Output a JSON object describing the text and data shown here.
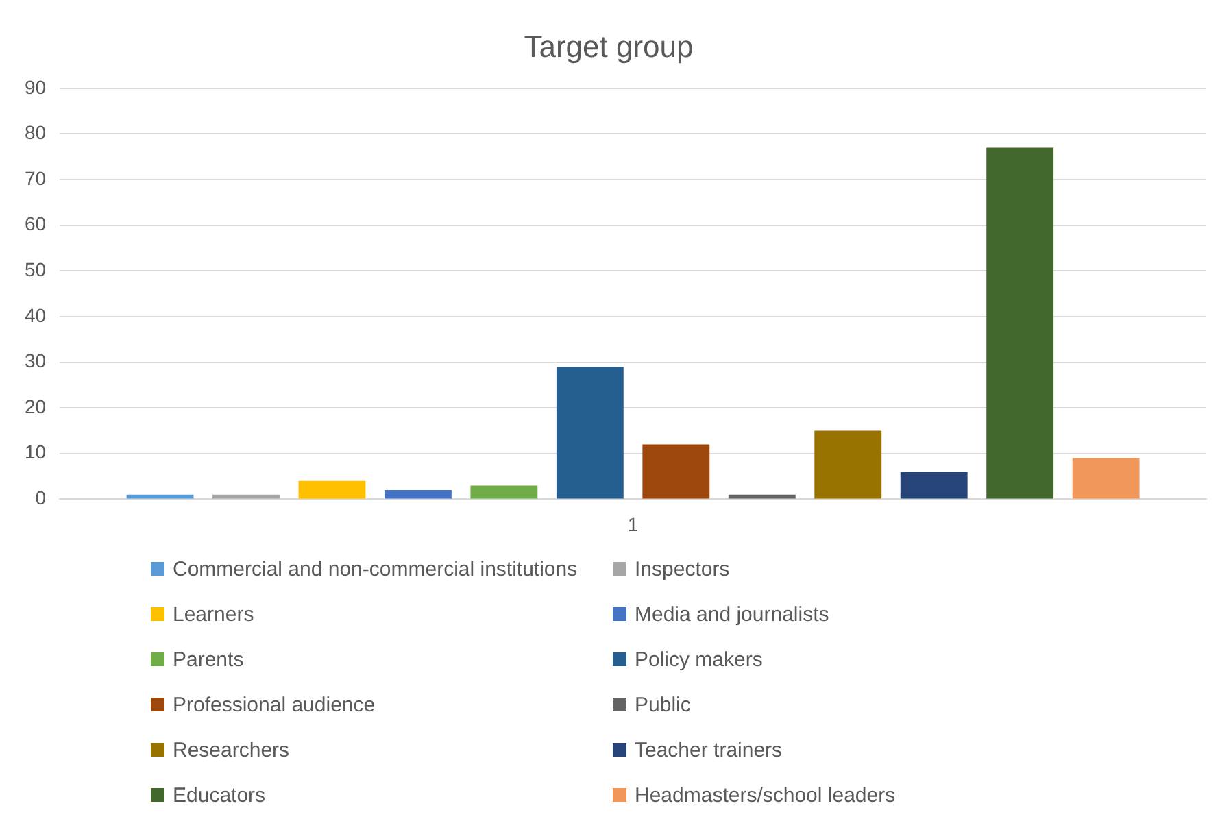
{
  "chart_data": {
    "type": "bar",
    "title": "Target group",
    "categories": [
      "1"
    ],
    "series": [
      {
        "name": "Commercial and non-commercial institutions",
        "color": "#5b9bd5",
        "values": [
          1
        ]
      },
      {
        "name": "Inspectors",
        "color": "#a5a5a5",
        "values": [
          1
        ]
      },
      {
        "name": "Learners",
        "color": "#ffc000",
        "values": [
          4
        ]
      },
      {
        "name": "Media and journalists",
        "color": "#4472c4",
        "values": [
          2
        ]
      },
      {
        "name": "Parents",
        "color": "#70ad47",
        "values": [
          3
        ]
      },
      {
        "name": "Policy makers",
        "color": "#255e91",
        "values": [
          29
        ]
      },
      {
        "name": "Professional audience",
        "color": "#9e480e",
        "values": [
          12
        ]
      },
      {
        "name": "Public",
        "color": "#636363",
        "values": [
          1
        ]
      },
      {
        "name": "Researchers",
        "color": "#997300",
        "values": [
          15
        ]
      },
      {
        "name": "Teacher trainers",
        "color": "#264478",
        "values": [
          6
        ]
      },
      {
        "name": "Educators",
        "color": "#43682b",
        "values": [
          77
        ]
      },
      {
        "name": "Headmasters/school leaders",
        "color": "#f1975a",
        "values": [
          9
        ]
      }
    ],
    "ylim": [
      0,
      90
    ],
    "yticks": [
      0,
      10,
      20,
      30,
      40,
      50,
      60,
      70,
      80,
      90
    ],
    "grid": "y",
    "legend": "bottom"
  }
}
